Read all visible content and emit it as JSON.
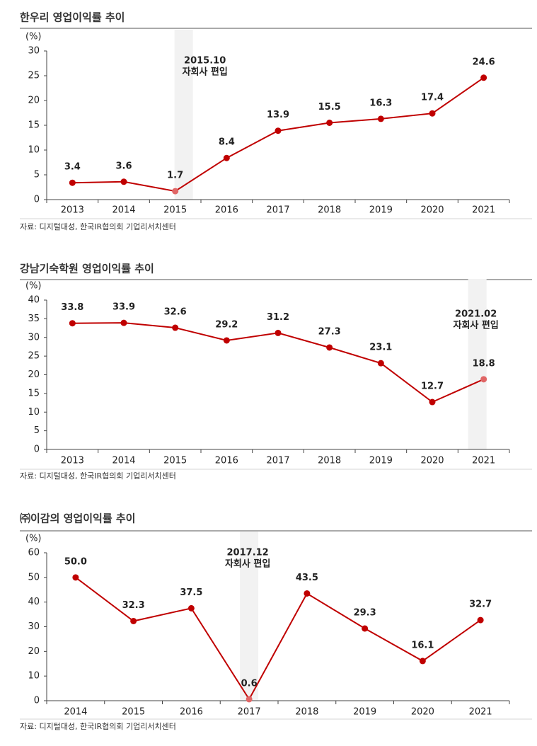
{
  "chart_data": [
    {
      "type": "line",
      "title": "한우리 영업이익률 추이",
      "ylabel": "(%)",
      "categories": [
        "2013",
        "2014",
        "2015",
        "2016",
        "2017",
        "2018",
        "2019",
        "2020",
        "2021"
      ],
      "values": [
        3.4,
        3.6,
        1.7,
        8.4,
        13.9,
        15.5,
        16.3,
        17.4,
        24.6
      ],
      "ylim": [
        0,
        30
      ],
      "yticks": [
        0,
        5,
        10,
        15,
        20,
        25,
        30
      ],
      "color": "#c00000",
      "highlight_color": "#e06666",
      "band_color": "#f2f2f2",
      "annotation": {
        "text": [
          "2015.10",
          "자회사 편입"
        ],
        "category": "2015"
      },
      "source": "자료: 디지털대성, 한국IR협의회 기업리서치센터"
    },
    {
      "type": "line",
      "title": "강남기숙학원 영업이익률 추이",
      "ylabel": "(%)",
      "categories": [
        "2013",
        "2014",
        "2015",
        "2016",
        "2017",
        "2018",
        "2019",
        "2020",
        "2021"
      ],
      "values": [
        33.8,
        33.9,
        32.6,
        29.2,
        31.2,
        27.3,
        23.1,
        12.7,
        18.8
      ],
      "ylim": [
        0,
        40
      ],
      "yticks": [
        0,
        5,
        10,
        15,
        20,
        25,
        30,
        35,
        40
      ],
      "color": "#c00000",
      "highlight_color": "#e06666",
      "band_color": "#f2f2f2",
      "annotation": {
        "text": [
          "2021.02",
          "자회사 편입"
        ],
        "category": "2021"
      },
      "source": "자료: 디지털대성, 한국IR협의회 기업리서치센터"
    },
    {
      "type": "line",
      "title": "㈜이감의 영업이익률 추이",
      "ylabel": "(%)",
      "categories": [
        "2014",
        "2015",
        "2016",
        "2017",
        "2018",
        "2019",
        "2020",
        "2021"
      ],
      "values": [
        50,
        32.3,
        37.5,
        0.6,
        43.5,
        29.3,
        16.1,
        32.7
      ],
      "value_labels": [
        "50.0",
        "32.3",
        "37.5",
        "0.6",
        "43.5",
        "29.3",
        "16.1",
        "32.7"
      ],
      "ylim": [
        0,
        60
      ],
      "yticks": [
        0,
        10,
        20,
        30,
        40,
        50,
        60
      ],
      "color": "#c00000",
      "highlight_color": "#e06666",
      "band_color": "#f2f2f2",
      "annotation": {
        "text": [
          "2017.12",
          "자회사 편입"
        ],
        "category": "2017"
      },
      "source": "자료: 디지털대성, 한국IR협의회 기업리서치센터"
    }
  ]
}
